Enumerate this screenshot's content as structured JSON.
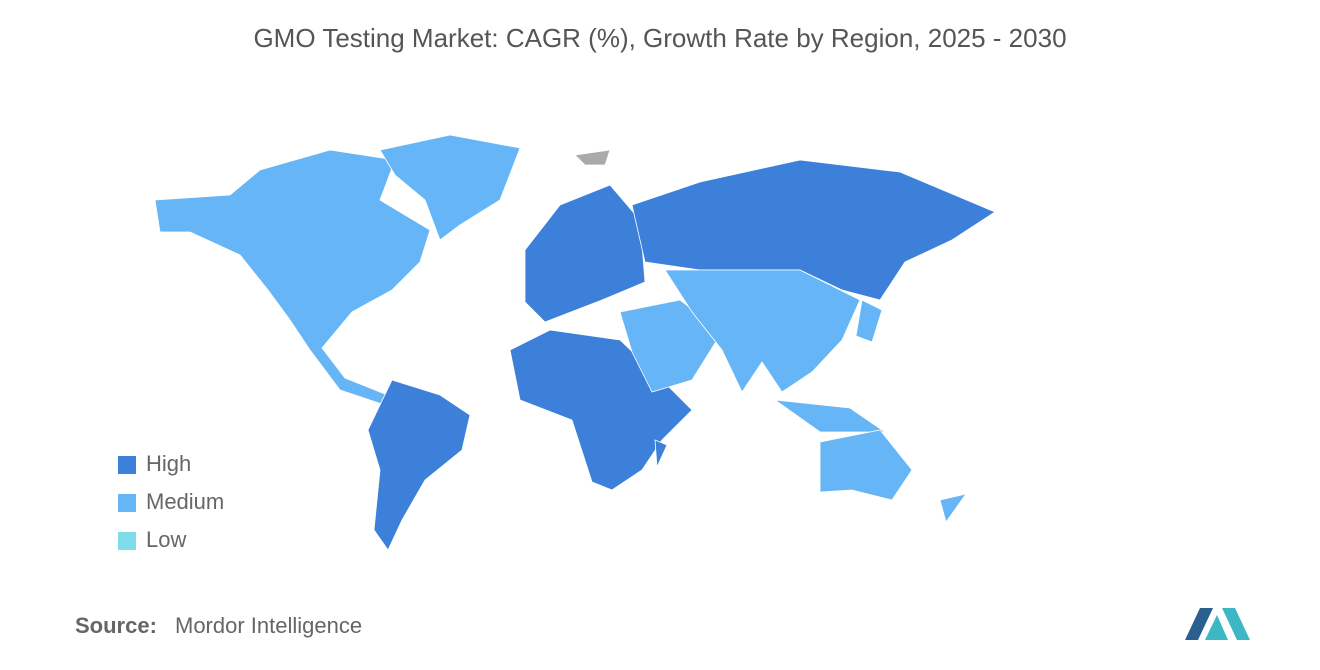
{
  "title": "GMO Testing Market: CAGR (%), Growth Rate by Region, 2025 - 2030",
  "legend": [
    {
      "label": "High",
      "color": "#3c80d9"
    },
    {
      "label": "Medium",
      "color": "#66b5f6"
    },
    {
      "label": "Low",
      "color": "#7fdde9"
    }
  ],
  "source": {
    "label": "Source:",
    "text": "Mordor Intelligence"
  }
}
